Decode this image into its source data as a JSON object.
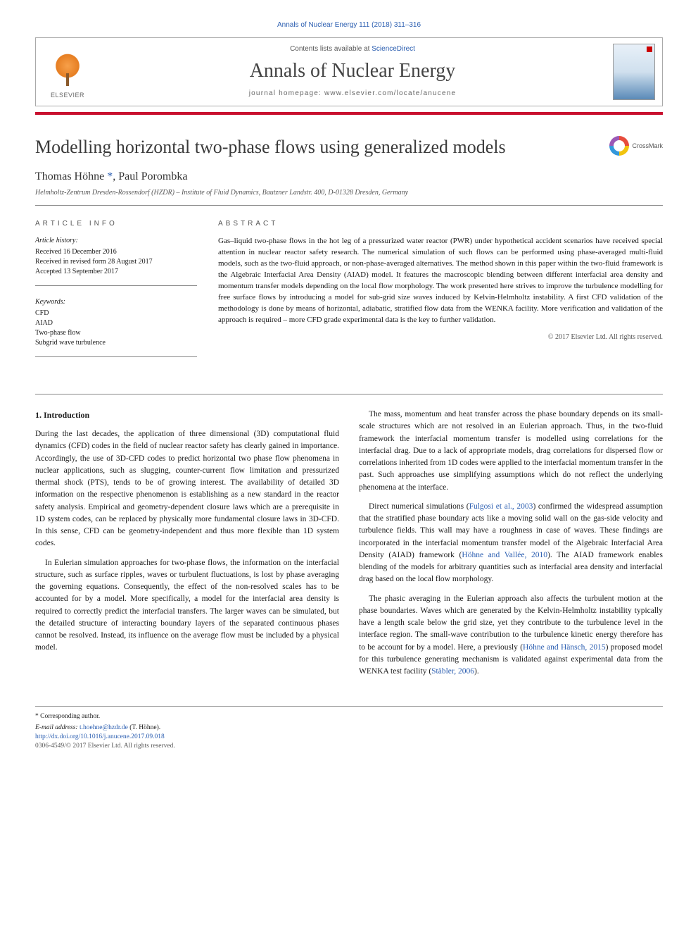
{
  "citation": "Annals of Nuclear Energy 111 (2018) 311–316",
  "header": {
    "contents_prefix": "Contents lists available at ",
    "contents_link": "ScienceDirect",
    "journal": "Annals of Nuclear Energy",
    "homepage_label": "journal homepage: ",
    "homepage_url": "www.elsevier.com/locate/anucene",
    "publisher": "ELSEVIER"
  },
  "crossmark_label": "CrossMark",
  "title": "Modelling horizontal two-phase flows using generalized models",
  "authors": "Thomas Höhne *, Paul Porombka",
  "affiliation": "Helmholtz-Zentrum Dresden-Rossendorf (HZDR) – Institute of Fluid Dynamics, Bautzner Landstr. 400, D-01328 Dresden, Germany",
  "info": {
    "heading": "ARTICLE INFO",
    "history_label": "Article history:",
    "received": "Received 16 December 2016",
    "revised": "Received in revised form 28 August 2017",
    "accepted": "Accepted 13 September 2017",
    "keywords_label": "Keywords:",
    "keywords": [
      "CFD",
      "AIAD",
      "Two-phase flow",
      "Subgrid wave turbulence"
    ]
  },
  "abstract": {
    "heading": "ABSTRACT",
    "body": "Gas–liquid two-phase flows in the hot leg of a pressurized water reactor (PWR) under hypothetical accident scenarios have received special attention in nuclear reactor safety research. The numerical simulation of such flows can be performed using phase-averaged multi-fluid models, such as the two-fluid approach, or non-phase-averaged alternatives. The method shown in this paper within the two-fluid framework is the Algebraic Interfacial Area Density (AIAD) model. It features the macroscopic blending between different interfacial area density and momentum transfer models depending on the local flow morphology. The work presented here strives to improve the turbulence modelling for free surface flows by introducing a model for sub-grid size waves induced by Kelvin-Helmholtz instability. A first CFD validation of the methodology is done by means of horizontal, adiabatic, stratified flow data from the WENKA facility. More verification and validation of the approach is required – more CFD grade experimental data is the key to further validation.",
    "copyright": "© 2017 Elsevier Ltd. All rights reserved."
  },
  "body": {
    "section1_head": "1. Introduction",
    "p1": "During the last decades, the application of three dimensional (3D) computational fluid dynamics (CFD) codes in the field of nuclear reactor safety has clearly gained in importance. Accordingly, the use of 3D-CFD codes to predict horizontal two phase flow phenomena in nuclear applications, such as slugging, counter-current flow limitation and pressurized thermal shock (PTS), tends to be of growing interest. The availability of detailed 3D information on the respective phenomenon is establishing as a new standard in the reactor safety analysis. Empirical and geometry-dependent closure laws which are a prerequisite in 1D system codes, can be replaced by physically more fundamental closure laws in 3D-CFD. In this sense, CFD can be geometry-independent and thus more flexible than 1D system codes.",
    "p2": "In Eulerian simulation approaches for two-phase flows, the information on the interfacial structure, such as surface ripples, waves or turbulent fluctuations, is lost by phase averaging the governing equations. Consequently, the effect of the non-resolved scales has to be accounted for by a model. More specifically, a model for the interfacial area density is required to correctly predict the interfacial transfers. The larger waves can be simulated, but the detailed structure of interacting boundary layers of the separated continuous phases cannot be resolved. Instead, its influence on the average flow must be included by a physical model.",
    "p3": "The mass, momentum and heat transfer across the phase boundary depends on its small-scale structures which are not resolved in an Eulerian approach. Thus, in the two-fluid framework the interfacial momentum transfer is modelled using correlations for the interfacial drag. Due to a lack of appropriate models, drag correlations for dispersed flow or correlations inherited from 1D codes were applied to the interfacial momentum transfer in the past. Such approaches use simplifying assumptions which do not reflect the underlying phenomena at the interface.",
    "p4_a": "Direct numerical simulations (",
    "p4_ref1": "Fulgosi et al., 2003",
    "p4_b": ") confirmed the widespread assumption that the stratified phase boundary acts like a moving solid wall on the gas-side velocity and turbulence fields. This wall may have a roughness in case of waves. These findings are incorporated in the interfacial momentum transfer model of the Algebraic Interfacial Area Density (AIAD) framework (",
    "p4_ref2": "Höhne and Vallée, 2010",
    "p4_c": "). The AIAD framework enables blending of the models for arbitrary quantities such as interfacial area density and interfacial drag based on the local flow morphology.",
    "p5_a": "The phasic averaging in the Eulerian approach also affects the turbulent motion at the phase boundaries. Waves which are generated by the Kelvin-Helmholtz instability typically have a length scale below the grid size, yet they contribute to the turbulence level in the interface region. The small-wave contribution to the turbulence kinetic energy therefore has to be account for by a model. Here, a previously (",
    "p5_ref1": "Höhne and Hänsch, 2015",
    "p5_b": ") proposed model for this turbulence generating mechanism is validated against experimental data from the WENKA test facility (",
    "p5_ref2": "Stäbler, 2006",
    "p5_c": ")."
  },
  "footer": {
    "corr": "* Corresponding author.",
    "email_label": "E-mail address: ",
    "email": "t.hoehne@hzdr.de",
    "email_suffix": " (T. Höhne).",
    "doi": "http://dx.doi.org/10.1016/j.anucene.2017.09.018",
    "issn": "0306-4549/© 2017 Elsevier Ltd. All rights reserved."
  },
  "colors": {
    "link": "#2a5db0",
    "accent_bar": "#c8102e",
    "text": "#1a1a1a",
    "muted": "#555"
  }
}
